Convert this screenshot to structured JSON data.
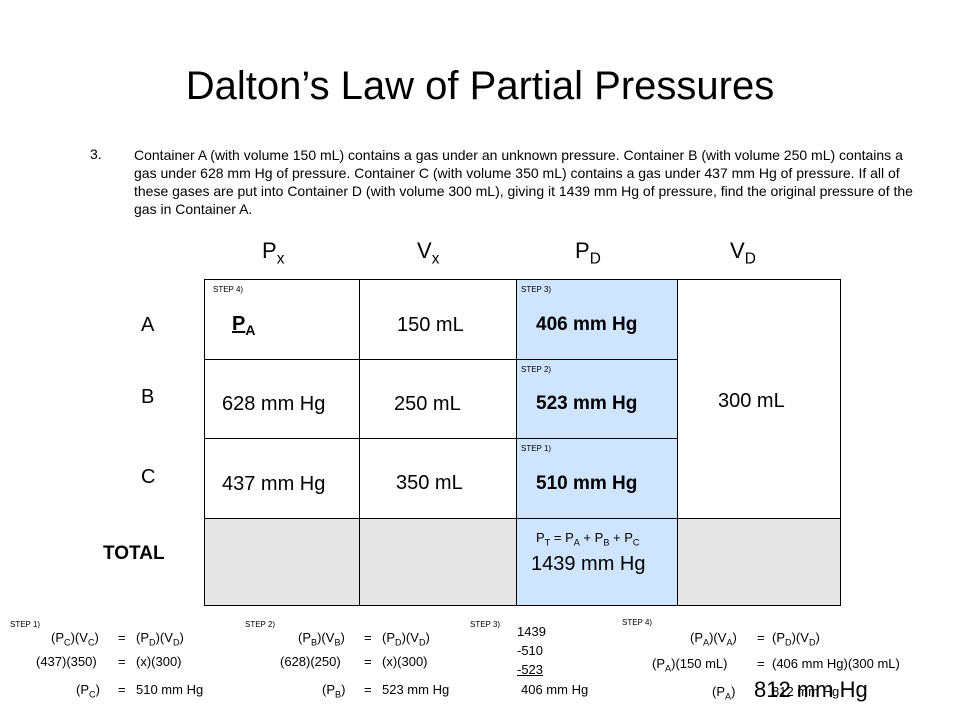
{
  "title": "Dalton’s Law of Partial Pressures",
  "problem": {
    "number": "3.",
    "text": "Container A (with volume 150 mL) contains a gas under an unknown pressure.  Container B (with volume 250  mL) contains a gas under 628 mm Hg of pressure.  Container C (with volume 350 mL) contains a gas under 437 mm Hg of pressure.  If all of these gases are put into Container D (with volume 300 mL), giving it 1439 mm Hg of pressure, find the original pressure of the gas in Container A."
  },
  "headers": {
    "px_base": "P",
    "px_sub": "x",
    "vx_base": "V",
    "vx_sub": "x",
    "pd_base": "P",
    "pd_sub": "D",
    "vd_base": "V",
    "vd_sub": "D"
  },
  "rows": {
    "a": "A",
    "b": "B",
    "c": "C",
    "total": "TOTAL"
  },
  "table": {
    "a_step": "STEP 4)",
    "a_p_base": "P",
    "a_p_sub": "A",
    "a_vol": "150 mL",
    "a_pd_step": "STEP 3)",
    "a_pd": "406 mm Hg",
    "b_p": "628 mm Hg",
    "b_vol": "250 mL",
    "b_pd_step": "STEP 2)",
    "b_pd": "523 mm Hg",
    "c_p": "437 mm Hg",
    "c_vol": "350 mL",
    "c_pd_step": "STEP 1)",
    "c_pd": "510 mm Hg",
    "vd": "300 mL",
    "total_formula": {
      "pt": "P",
      "pt_sub": "T",
      "eq": " = ",
      "pa": "P",
      "pa_sub": "A",
      "plus1": " + ",
      "pb": "P",
      "pb_sub": "B",
      "plus2": " + ",
      "pc": "P",
      "pc_sub": "C"
    },
    "total_value": "1439 mm Hg"
  },
  "work": {
    "step1": {
      "label": "STEP 1)",
      "pc": "P",
      "pc_sub": "C",
      "vc": "V",
      "vc_sub": "C",
      "pd": "P",
      "pd_sub": "D",
      "vd": "V",
      "vd_sub": "D",
      "eq": "=",
      "line2_left": "(437)(350)",
      "line2_right": "(x)(300)",
      "line3_right": "510 mm Hg"
    },
    "step2": {
      "label": "STEP 2)",
      "pb": "P",
      "pb_sub": "B",
      "vb": "V",
      "vb_sub": "B",
      "pd": "P",
      "pd_sub": "D",
      "vd": "V",
      "vd_sub": "D",
      "eq": "=",
      "line2_left": "(628)(250)",
      "line2_right": "(x)(300)",
      "line3_right": "523 mm Hg"
    },
    "step3": {
      "label": "STEP 3)",
      "n1": "1439",
      "n2": "-510",
      "n3": "-523",
      "result": "406 mm Hg"
    },
    "step4": {
      "label": "STEP 4)",
      "pa": "P",
      "pa_sub": "A",
      "va": "V",
      "va_sub": "A",
      "pd": "P",
      "pd_sub": "D",
      "vd": "V",
      "vd_sub": "D",
      "eq": "=",
      "line2_left": "(150 mL)",
      "line2_right": "(406 mm Hg)(300 mL)",
      "line3_small": "812 mm Hg",
      "answer": "812 mm Hg"
    }
  }
}
